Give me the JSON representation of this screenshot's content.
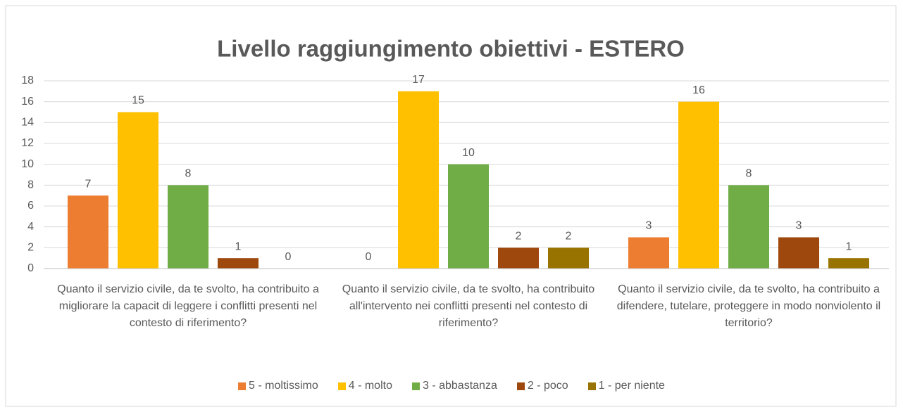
{
  "chart_data": {
    "type": "bar",
    "title": "Livello raggiungimento obiettivi - ESTERO",
    "categories": [
      "Quanto il servizio civile, da te svolto, ha contribuito a migliorare la capacit di leggere i conflitti presenti nel contesto di riferimento?",
      "Quanto il servizio civile, da te svolto, ha contribuito all'intervento nei conflitti presenti nel contesto di riferimento?",
      "Quanto il servizio civile, da te svolto, ha contribuito a difendere, tutelare, proteggere in modo nonviolento il territorio?"
    ],
    "series": [
      {
        "name": "5 - moltissimo",
        "color": "#ED7D31",
        "values": [
          7,
          0,
          3
        ]
      },
      {
        "name": "4 - molto",
        "color": "#FFC000",
        "values": [
          15,
          17,
          16
        ]
      },
      {
        "name": "3 - abbastanza",
        "color": "#70AD47",
        "values": [
          8,
          10,
          8
        ]
      },
      {
        "name": "2 - poco",
        "color": "#9E480E",
        "values": [
          1,
          2,
          3
        ]
      },
      {
        "name": "1 - per niente",
        "color": "#997300",
        "values": [
          0,
          2,
          1
        ]
      }
    ],
    "ylim": [
      0,
      18
    ],
    "yticks": [
      0,
      2,
      4,
      6,
      8,
      10,
      12,
      14,
      16,
      18
    ],
    "grid": true,
    "legend": "bottom"
  }
}
